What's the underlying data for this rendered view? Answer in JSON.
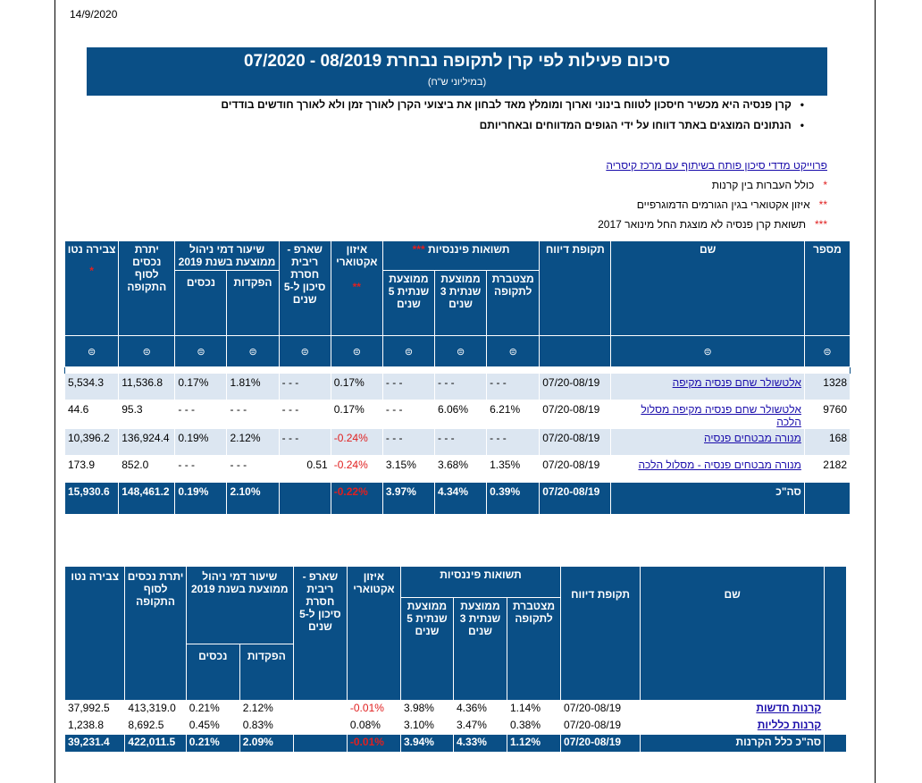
{
  "header": {
    "date": "14/9/2020"
  },
  "title": {
    "main": "סיכום פעילות לפי קרן לתקופה נבחרת 08/2019 - 07/2020",
    "sub": "(במיליוני ש\"ח)"
  },
  "bullets": [
    "קרן פנסיה היא מכשיר חיסכון לטווח בינוני וארוך ומומלץ מאד לבחון את ביצועי הקרן לאורך זמן ולא לאורך חודשים בודדים",
    "הנתונים המוצגים באתר דווחו על ידי הגופים המדווחים ובאחריותם"
  ],
  "bullet_glyph": "•",
  "info": {
    "link": "פרוייקט מדדי סיכון פותח בשיתוף עם מרכז קיסריה",
    "notes": [
      {
        "mark": "*",
        "text": "כולל העברות בין קרנות"
      },
      {
        "mark": "**",
        "text": "איזון אקטוארי בגין הגורמים הדמוגרפיים"
      },
      {
        "mark": "***",
        "text": "תשואת קרן פנסיה לא מוצגת החל מינואר 2017"
      }
    ]
  },
  "table1": {
    "group_header": "תשואות פיננסיות",
    "group_mark": "***",
    "headers": {
      "id": "מספר",
      "name": "שם",
      "period": "תקופת דיווח",
      "cumulative": "מצטברת לתקופה",
      "avg3": "ממוצעת שנתית 3 שנים",
      "avg5": "ממוצעת שנתית 5 שנים",
      "actuarial": "איזון אקטוארי",
      "actuarial_mark": "**",
      "sharpe": "שארפ - ריבית חסרת סיכון ל-5 שנים",
      "fee": "שיעור דמי ניהול ממוצעת בשנת 2019",
      "fee_dep": "הפקדות",
      "fee_assets": "נכסים",
      "balance": "יתרת נכסים לסוף התקופה",
      "net": "צבירה נטו",
      "net_mark": "*"
    },
    "sort_glyph": "⊜",
    "rows": [
      {
        "id": "1328",
        "name": "אלטשולר שחם פנסיה מקיפה",
        "period": "07/20-08/19",
        "cumulative": "- - -",
        "avg3": "- - -",
        "avg5": "- - -",
        "actuarial": "0.17%",
        "sharpe": "- - -",
        "fee_dep": "1.81%",
        "fee_assets": "0.17%",
        "balance": "11,536.8",
        "net": "5,534.3"
      },
      {
        "id": "9760",
        "name": "אלטשולר שחם פנסיה מקיפה מסלול הלכה",
        "period": "07/20-08/19",
        "cumulative": "6.21%",
        "avg3": "6.06%",
        "avg5": "- - -",
        "actuarial": "0.17%",
        "sharpe": "- - -",
        "fee_dep": "- - -",
        "fee_assets": "- - -",
        "balance": "95.3",
        "net": "44.6"
      },
      {
        "id": "168",
        "name": "מנורה מבטחים פנסיה",
        "period": "07/20-08/19",
        "cumulative": "- - -",
        "avg3": "- - -",
        "avg5": "- - -",
        "actuarial": "-0.24%",
        "sharpe": "- - -",
        "fee_dep": "2.12%",
        "fee_assets": "0.19%",
        "balance": "136,924.4",
        "net": "10,396.2"
      },
      {
        "id": "2182",
        "name": "מנורה מבטחים פנסיה - מסלול הלכה",
        "period": "07/20-08/19",
        "cumulative": "1.35%",
        "avg3": "3.68%",
        "avg5": "3.15%",
        "actuarial": "-0.24%",
        "sharpe": "0.51",
        "fee_dep": "- - -",
        "fee_assets": "- - -",
        "balance": "852.0",
        "net": "173.9"
      }
    ],
    "total": {
      "name": "סה\"כ",
      "period": "07/20-08/19",
      "cumulative": "0.39%",
      "avg3": "4.34%",
      "avg5": "3.97%",
      "actuarial": "-0.22%",
      "sharpe": "",
      "fee_dep": "2.10%",
      "fee_assets": "0.19%",
      "balance": "148,461.2",
      "net": "15,930.6"
    }
  },
  "table2": {
    "group_header": "תשואות פיננסיות",
    "headers": {
      "name": "שם",
      "period": "תקופת דיווח",
      "cumulative": "מצטברת לתקופה",
      "avg3": "ממוצעת שנתית 3 שנים",
      "avg5": "ממוצעת שנתית 5 שנים",
      "actuarial": "איזון אקטוארי",
      "sharpe": "שארפ - ריבית חסרת סיכון ל-5 שנים",
      "fee": "שיעור דמי ניהול ממוצעת בשנת 2019",
      "fee_dep": "הפקדות",
      "fee_assets": "נכסים",
      "balance": "יתרת נכסים לסוף התקופה",
      "net": "צבירה נטו"
    },
    "rows": [
      {
        "name": "קרנות חדשות",
        "period": "07/20-08/19",
        "cumulative": "1.14%",
        "avg3": "4.36%",
        "avg5": "3.98%",
        "actuarial": "-0.01%",
        "sharpe": "",
        "fee_dep": "2.12%",
        "fee_assets": "0.21%",
        "balance": "413,319.0",
        "net": "37,992.5"
      },
      {
        "name": "קרנות כלליות",
        "period": "07/20-08/19",
        "cumulative": "0.38%",
        "avg3": "3.47%",
        "avg5": "3.10%",
        "actuarial": "0.08%",
        "sharpe": "",
        "fee_dep": "0.83%",
        "fee_assets": "0.45%",
        "balance": "8,692.5",
        "net": "1,238.8"
      }
    ],
    "total": {
      "name": "סה\"כ כלל הקרנות",
      "period": "07/20-08/19",
      "cumulative": "1.12%",
      "avg3": "4.33%",
      "avg5": "3.94%",
      "actuarial": "-0.01%",
      "sharpe": "",
      "fee_dep": "2.09%",
      "fee_assets": "0.21%",
      "balance": "422,011.5",
      "net": "39,231.4"
    }
  }
}
